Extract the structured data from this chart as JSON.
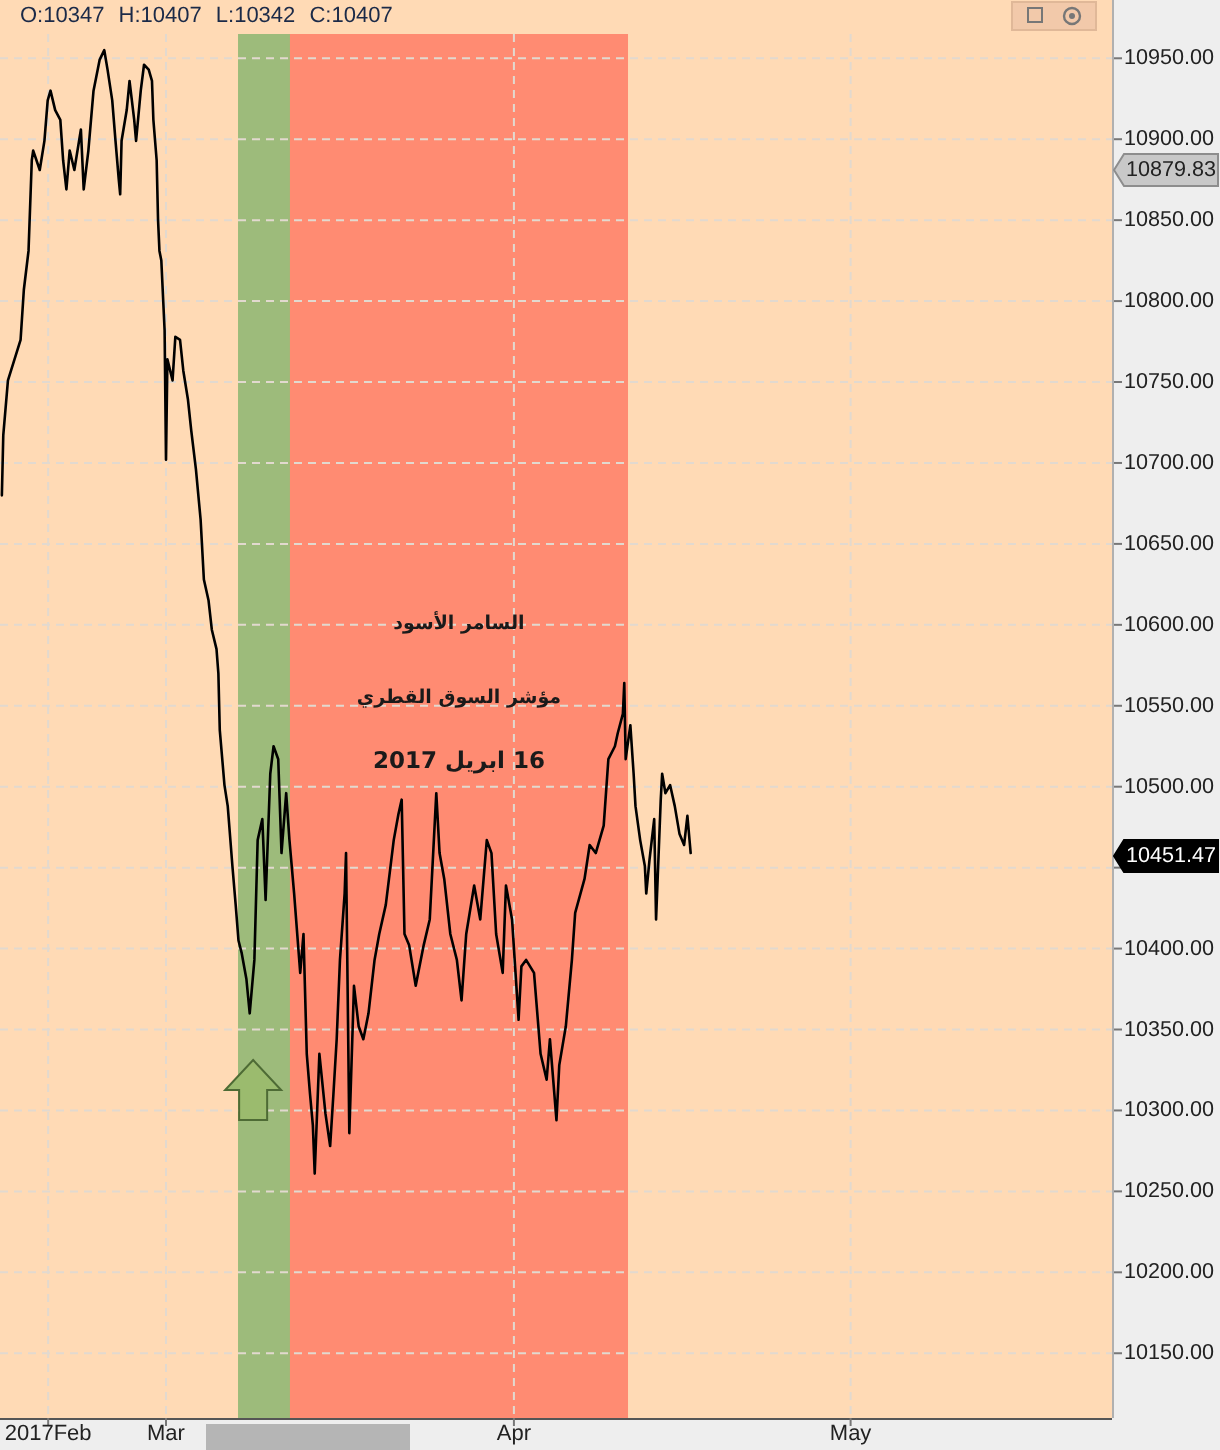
{
  "chart_data": {
    "type": "line",
    "annotations": [
      "O:10347 H:10407 L:10342 C:10407",
      "السامر الأسود",
      "مؤشر السوق القطري",
      "16 ابريل 2017",
      "10879.83",
      "10451.47"
    ],
    "x": [
      "2017-02-14T09:00",
      "2017-02-14T12:00",
      "2017-02-14T22:00",
      "2017-02-15T12:00",
      "2017-02-16T01:00",
      "2017-02-16T08:00",
      "2017-02-16T18:00",
      "2017-02-17T01:00",
      "2017-02-17T04:00",
      "2017-02-17T18:00",
      "2017-02-18T04:00",
      "2017-02-18T11:00",
      "2017-02-18T17:00",
      "2017-02-19T03:00",
      "2017-02-19T14:00",
      "2017-02-19T20:00",
      "2017-02-20T03:00",
      "2017-02-20T10:00",
      "2017-02-20T20:00",
      "2017-02-21T10:00",
      "2017-02-21T16:00",
      "2017-02-22T02:00",
      "2017-02-22T13:00",
      "2017-02-23T02:00",
      "2017-02-23T12:00",
      "2017-02-23T19:00",
      "2017-02-24T05:00",
      "2017-02-24T12:00",
      "2017-02-24T19:00",
      "2017-02-24T22:00",
      "2017-02-25T01:00",
      "2017-02-25T12:00",
      "2017-02-25T18:00",
      "2017-02-26T04:00",
      "2017-02-26T08:00",
      "2017-02-26T18:00",
      "2017-02-27T01:00",
      "2017-02-27T11:00",
      "2017-02-27T18:00",
      "2017-02-27T21:00",
      "2017-02-28T04:00",
      "2017-02-28T07:00",
      "2017-02-28T10:00",
      "2017-02-28T14:00",
      "2017-02-28T21:00",
      "2017-03-01T00:00",
      "2017-03-01T03:00",
      "2017-03-01T14:00",
      "2017-03-01T20:00",
      "2017-03-02T06:00",
      "2017-03-02T13:00",
      "2017-03-02T23:00",
      "2017-03-03T06:00",
      "2017-03-03T16:00",
      "2017-03-04T02:00",
      "2017-03-04T09:00",
      "2017-03-04T19:00",
      "2017-03-05T02:00",
      "2017-03-05T12:00",
      "2017-03-05T16:00",
      "2017-03-05T19:00",
      "2017-03-06T05:00",
      "2017-03-06T12:00",
      "2017-03-06T22:00",
      "2017-03-07T05:00",
      "2017-03-07T11:00",
      "2017-03-07T18:00",
      "2017-03-08T04:00",
      "2017-03-08T11:00",
      "2017-03-08T21:00",
      "2017-03-09T04:00",
      "2017-03-09T14:00",
      "2017-03-09T21:00",
      "2017-03-10T07:00",
      "2017-03-10T14:00",
      "2017-03-11T00:00",
      "2017-03-11T07:00",
      "2017-03-11T17:00",
      "2017-03-12T00:00",
      "2017-03-12T10:00",
      "2017-03-12T23:00",
      "2017-03-13T06:00",
      "2017-03-13T13:00",
      "2017-03-13T20:00",
      "2017-03-14T02:00",
      "2017-03-14T06:00",
      "2017-03-14T16:00",
      "2017-03-15T05:00",
      "2017-03-15T15:00",
      "2017-03-15T22:00",
      "2017-03-16T05:00",
      "2017-03-16T12:00",
      "2017-03-16T22:00",
      "2017-03-17T01:00",
      "2017-03-17T08:00",
      "2017-03-17T18:00",
      "2017-03-18T04:00",
      "2017-03-18T14:00",
      "2017-03-19T01:00",
      "2017-03-19T14:00",
      "2017-03-20T00:00",
      "2017-03-20T14:00",
      "2017-03-21T07:00",
      "2017-03-21T17:00",
      "2017-03-22T00:00",
      "2017-03-22T06:00",
      "2017-03-22T16:00",
      "2017-03-23T06:00",
      "2017-03-23T23:00",
      "2017-03-24T12:00",
      "2017-03-25T02:00",
      "2017-03-25T09:00",
      "2017-03-25T19:00",
      "2017-03-26T08:00",
      "2017-03-26T22:00",
      "2017-03-27T08:00",
      "2017-03-27T18:00",
      "2017-03-28T11:00",
      "2017-03-29T00:00",
      "2017-03-29T14:00",
      "2017-03-30T00:00",
      "2017-03-30T10:00",
      "2017-03-31T00:00",
      "2017-03-31T07:00",
      "2017-03-31T20:00",
      "2017-04-01T10:00",
      "2017-04-01T16:00",
      "2017-04-02T02:00",
      "2017-04-02T19:00",
      "2017-04-03T09:00",
      "2017-04-03T22:00",
      "2017-04-04T05:00",
      "2017-04-04T19:00",
      "2017-04-05T01:00",
      "2017-04-05T15:00",
      "2017-04-06T04:00",
      "2017-04-06T11:00",
      "2017-04-07T07:00",
      "2017-04-07T18:00",
      "2017-04-08T07:00",
      "2017-04-09T00:00",
      "2017-04-09T10:00",
      "2017-04-10T00:00",
      "2017-04-10T06:00",
      "2017-04-10T17:00",
      "2017-04-10T20:00",
      "2017-04-10T23:00",
      "2017-04-11T09:00",
      "2017-04-11T16:00",
      "2017-04-11T20:00",
      "2017-04-12T06:00",
      "2017-04-12T16:00",
      "2017-04-12T19:00",
      "2017-04-13T02:00",
      "2017-04-13T12:00",
      "2017-04-13T16:00",
      "2017-04-14T02:00",
      "2017-04-14T05:00",
      "2017-04-14T12:00",
      "2017-04-14T22:00",
      "2017-04-15T08:00",
      "2017-04-15T18:00",
      "2017-04-16T04:00",
      "2017-04-16T11:00",
      "2017-04-16T18:00"
    ],
    "series": [
      {
        "color": "#000000",
        "values": [
          10680,
          10717,
          10751,
          10764,
          10776,
          10807,
          10831,
          10887,
          10893,
          10881,
          10899,
          10924,
          10930,
          10918,
          10912,
          10887,
          10869,
          10893,
          10881,
          10906,
          10869,
          10893,
          10930,
          10949,
          10955,
          10943,
          10924,
          10899,
          10875,
          10866,
          10899,
          10918,
          10936,
          10912,
          10899,
          10930,
          10946,
          10943,
          10936,
          10912,
          10887,
          10850,
          10831,
          10825,
          10782,
          10702,
          10764,
          10751,
          10778,
          10776,
          10757,
          10739,
          10720,
          10696,
          10665,
          10628,
          10615,
          10597,
          10585,
          10570,
          10535,
          10501,
          10488,
          10451,
          10427,
          10405,
          10397,
          10381,
          10360,
          10393,
          10467,
          10480,
          10430,
          10508,
          10525,
          10517,
          10459,
          10496,
          10467,
          10434,
          10385,
          10409,
          10335,
          10310,
          10291,
          10261,
          10335,
          10298,
          10278,
          10310,
          10344,
          10393,
          10434,
          10459,
          10286,
          10377,
          10352,
          10344,
          10360,
          10393,
          10409,
          10427,
          10467,
          10483,
          10492,
          10409,
          10402,
          10377,
          10402,
          10418,
          10496,
          10459,
          10443,
          10409,
          10393,
          10368,
          10409,
          10439,
          10418,
          10467,
          10459,
          10409,
          10385,
          10439,
          10418,
          10356,
          10389,
          10393,
          10385,
          10335,
          10319,
          10344,
          10294,
          10328,
          10352,
          10393,
          10422,
          10443,
          10464,
          10459,
          10476,
          10517,
          10525,
          10533,
          10545,
          10564,
          10517,
          10538,
          10508,
          10488,
          10467,
          10451,
          10434,
          10455,
          10480,
          10418,
          10492,
          10508,
          10496,
          10501,
          10488,
          10471,
          10464,
          10482,
          10459
        ]
      }
    ],
    "xlim": [
      "2017-02-14T05:00",
      "2017-05-24T07:00"
    ],
    "xticks": [
      {
        "value": "2017-02-18T12:00",
        "label": "2017Feb"
      },
      {
        "value": "2017-03",
        "label": "Mar"
      },
      {
        "value": "2017-04",
        "label": "Apr"
      },
      {
        "value": "2017-05",
        "label": "May"
      }
    ],
    "ylim": [
      10110,
      10965
    ],
    "yticks": [
      {
        "value": 10150,
        "label": "10150.00"
      },
      {
        "value": 10200,
        "label": "10200.00"
      },
      {
        "value": 10250,
        "label": "10250.00"
      },
      {
        "value": 10300,
        "label": "10300.00"
      },
      {
        "value": 10350,
        "label": "10350.00"
      },
      {
        "value": 10400,
        "label": "10400.00"
      },
      {
        "value": 10450,
        "label": null
      },
      {
        "value": 10500,
        "label": "10500.00"
      },
      {
        "value": 10550,
        "label": "10550.00"
      },
      {
        "value": 10600,
        "label": "10600.00"
      },
      {
        "value": 10650,
        "label": "10650.00"
      },
      {
        "value": 10700,
        "label": "10700.00"
      },
      {
        "value": 10750,
        "label": "10750.00"
      },
      {
        "value": 10800,
        "label": "10800.00"
      },
      {
        "value": 10850,
        "label": "10850.00"
      },
      {
        "value": 10900,
        "label": "10900.00"
      },
      {
        "value": 10950,
        "label": "10950.00"
      }
    ],
    "grid": true,
    "bands": [
      {
        "axis": "x",
        "from": "2017-03-07T10:00",
        "to": "2017-03-12T06:00",
        "color": "#9dbb7b"
      },
      {
        "axis": "x",
        "from": "2017-03-12T01:00",
        "to": "2017-04-11T04:00",
        "color": "#ff8b72"
      }
    ]
  }
}
